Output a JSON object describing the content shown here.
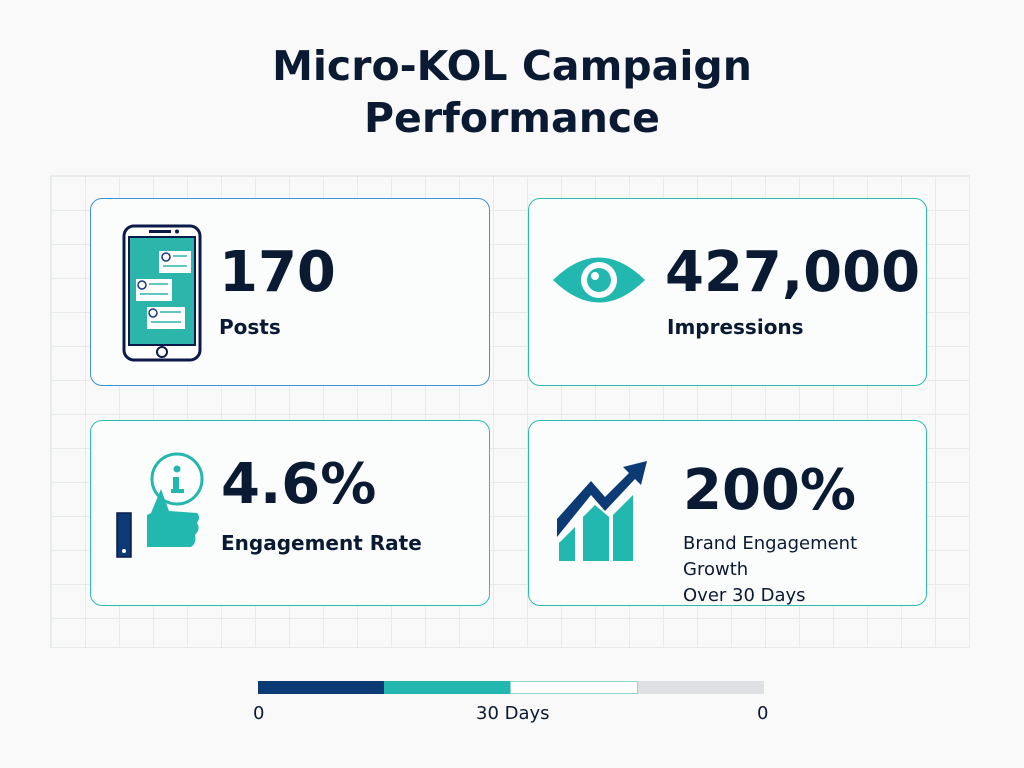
{
  "title": "Micro-KOL Campaign Performance",
  "title_lines": [
    "Micro-KOL Campaign",
    "Performance"
  ],
  "colors": {
    "navy": "#0b3a75",
    "teal": "#22b8b0",
    "dark_text": "#0b1a33",
    "gray": "#dfe0e3"
  },
  "cards": [
    {
      "value": "170",
      "label": "Posts",
      "icon": "smartphone-chat-icon"
    },
    {
      "value": "427,000",
      "label": "Impressions",
      "icon": "eye-icon"
    },
    {
      "value": "4.6%",
      "label": "Engagement Rate",
      "icon": "thumbs-up-info-icon"
    },
    {
      "value": "200%",
      "label_lines": [
        "Brand Engagement Growth",
        "Over 30 Days"
      ],
      "icon": "growth-chart-icon"
    }
  ],
  "timeline": {
    "start_label": "0",
    "mid_label": "30 Days",
    "end_label": "0"
  }
}
